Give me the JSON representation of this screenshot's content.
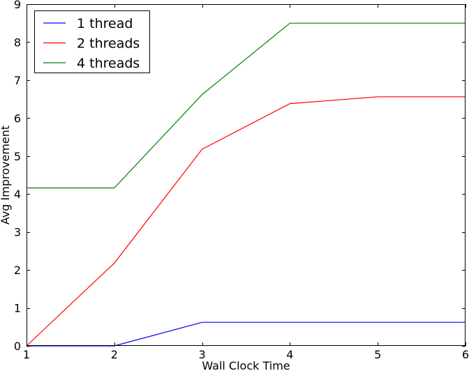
{
  "chart_data": {
    "type": "line",
    "title": "",
    "xlabel": "Wall Clock Time",
    "ylabel": "Avg Improvement",
    "xlim": [
      1,
      6
    ],
    "ylim": [
      0,
      9
    ],
    "xticks": [
      "1",
      "2",
      "3",
      "4",
      "5",
      "6"
    ],
    "yticks": [
      "0",
      "1",
      "2",
      "3",
      "4",
      "5",
      "6",
      "7",
      "8",
      "9"
    ],
    "grid": false,
    "legend": "top-left",
    "x": [
      1,
      2,
      3,
      4,
      5,
      6
    ],
    "series": [
      {
        "name": "1 thread",
        "color": "#0000ff",
        "values": [
          0,
          0,
          0.62,
          0.62,
          0.62,
          0.62
        ]
      },
      {
        "name": "2 threads",
        "color": "#ff0000",
        "values": [
          0,
          2.18,
          5.18,
          6.38,
          6.56,
          6.56
        ]
      },
      {
        "name": "4 threads",
        "color": "#008000",
        "values": [
          4.16,
          4.16,
          6.62,
          8.5,
          8.5,
          8.5
        ]
      }
    ]
  }
}
